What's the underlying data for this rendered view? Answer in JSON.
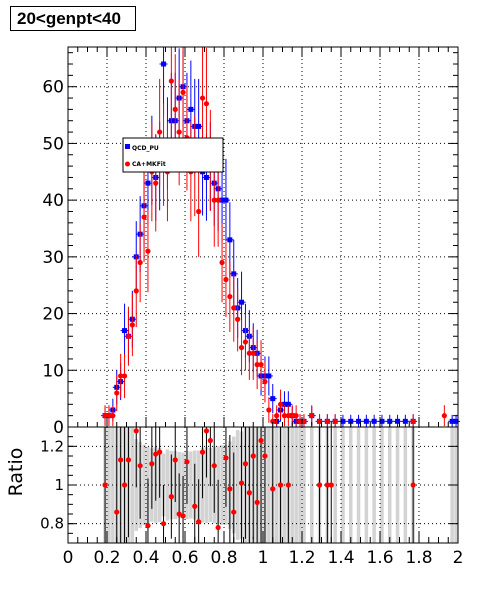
{
  "title": "20<genpt<40",
  "colors": {
    "series_a": "#0000ff",
    "series_b": "#ff0000",
    "band": "#d3d3d3",
    "grid": "#000000"
  },
  "chart_data": [
    {
      "type": "scatter",
      "title": "20<genpt<40",
      "xlabel": "",
      "ylabel": "",
      "xlim": [
        0,
        2
      ],
      "ylim": [
        0,
        67
      ],
      "grid": true,
      "legend": "upper-center",
      "x_ticks": [
        "0",
        "0.2",
        "0.4",
        "0.6",
        "0.8",
        "1",
        "1.2",
        "1.4",
        "1.6",
        "1.8",
        "2"
      ],
      "y_ticks": [
        "0",
        "10",
        "20",
        "30",
        "40",
        "50",
        "60"
      ],
      "series": [
        {
          "name": "QCD_PU",
          "x": [
            0.19,
            0.21,
            0.23,
            0.25,
            0.27,
            0.29,
            0.31,
            0.33,
            0.35,
            0.37,
            0.39,
            0.41,
            0.43,
            0.45,
            0.47,
            0.49,
            0.51,
            0.53,
            0.55,
            0.57,
            0.59,
            0.61,
            0.63,
            0.65,
            0.67,
            0.69,
            0.71,
            0.73,
            0.75,
            0.77,
            0.79,
            0.81,
            0.83,
            0.85,
            0.87,
            0.89,
            0.91,
            0.93,
            0.95,
            0.97,
            0.99,
            1.01,
            1.03,
            1.05,
            1.07,
            1.09,
            1.11,
            1.13,
            1.15,
            1.17,
            1.19,
            1.21,
            1.25,
            1.29,
            1.33,
            1.37,
            1.41,
            1.45,
            1.49,
            1.53,
            1.57,
            1.61,
            1.65,
            1.69,
            1.73,
            1.77,
            1.97,
            1.99
          ],
          "y": [
            2,
            2,
            3,
            7,
            8,
            17,
            16,
            19,
            30,
            34,
            39,
            43,
            47,
            44,
            46,
            64,
            50,
            54,
            54,
            58,
            60,
            54,
            56,
            53,
            53,
            45,
            44,
            46,
            43,
            42,
            40,
            40,
            33,
            27,
            21,
            22,
            17,
            16,
            14,
            13,
            9,
            9,
            9,
            5,
            1,
            3,
            4,
            4,
            2,
            1,
            1,
            1,
            2,
            1,
            1,
            1,
            1,
            1,
            1,
            1,
            1,
            1,
            1,
            1,
            1,
            1,
            1,
            1
          ]
        },
        {
          "name": "CA+MKFit",
          "x": [
            0.19,
            0.21,
            0.23,
            0.25,
            0.27,
            0.29,
            0.31,
            0.33,
            0.35,
            0.37,
            0.39,
            0.41,
            0.43,
            0.45,
            0.47,
            0.49,
            0.51,
            0.53,
            0.55,
            0.57,
            0.59,
            0.61,
            0.63,
            0.65,
            0.67,
            0.69,
            0.71,
            0.73,
            0.75,
            0.77,
            0.79,
            0.81,
            0.83,
            0.85,
            0.87,
            0.89,
            0.91,
            0.93,
            0.95,
            0.97,
            0.99,
            1.01,
            1.03,
            1.05,
            1.07,
            1.09,
            1.11,
            1.13,
            1.15,
            1.17,
            1.19,
            1.21,
            1.25,
            1.29,
            1.33,
            1.37,
            1.77,
            1.93
          ],
          "y": [
            2,
            2,
            2,
            6,
            9,
            9,
            16,
            18,
            24,
            29,
            37,
            31,
            45,
            43,
            52,
            48,
            45,
            61,
            56,
            52,
            59,
            51,
            45,
            46,
            38,
            58,
            57,
            47,
            40,
            40,
            29,
            26,
            23,
            21,
            19,
            14,
            15,
            13,
            13,
            11,
            11,
            8,
            3,
            1,
            2,
            4,
            2,
            2,
            2,
            2,
            1,
            1,
            2,
            1,
            1,
            1,
            1,
            2
          ]
        }
      ]
    },
    {
      "type": "scatter",
      "title": "",
      "xlabel": "",
      "ylabel": "Ratio",
      "xlim": [
        0,
        2
      ],
      "ylim": [
        0.7,
        1.3
      ],
      "grid": true,
      "x_ticks": [
        "0",
        "0.2",
        "0.4",
        "0.6",
        "0.8",
        "1",
        "1.2",
        "1.4",
        "1.6",
        "1.8",
        "2"
      ],
      "y_ticks": [
        "0.8",
        "1",
        "1.2"
      ],
      "series": [
        {
          "name": "",
          "x": [
            0.19,
            0.25,
            0.27,
            0.29,
            0.31,
            0.35,
            0.37,
            0.41,
            0.43,
            0.45,
            0.47,
            0.49,
            0.53,
            0.55,
            0.57,
            0.59,
            0.61,
            0.65,
            0.67,
            0.69,
            0.71,
            0.73,
            0.75,
            0.77,
            0.81,
            0.83,
            0.85,
            0.89,
            0.91,
            0.93,
            0.95,
            0.97,
            0.99,
            1.01,
            1.05,
            1.09,
            1.13,
            1.29,
            1.33,
            1.35,
            1.77
          ],
          "y": [
            1.0,
            0.86,
            1.13,
            1.0,
            1.13,
            1.28,
            1.1,
            0.79,
            1.11,
            1.16,
            1.17,
            0.8,
            0.94,
            1.13,
            0.85,
            0.84,
            1.12,
            0.89,
            0.81,
            1.17,
            1.28,
            1.23,
            1.1,
            0.78,
            1.14,
            0.98,
            0.86,
            1.01,
            1.11,
            0.96,
            1.15,
            0.91,
            1.23,
            1.15,
            0.98,
            1.0,
            1.0,
            1.0,
            1.0,
            1.0,
            1.0
          ]
        }
      ]
    }
  ],
  "legend": {
    "entries": [
      "QCD_PU",
      "CA+MKFit"
    ]
  }
}
